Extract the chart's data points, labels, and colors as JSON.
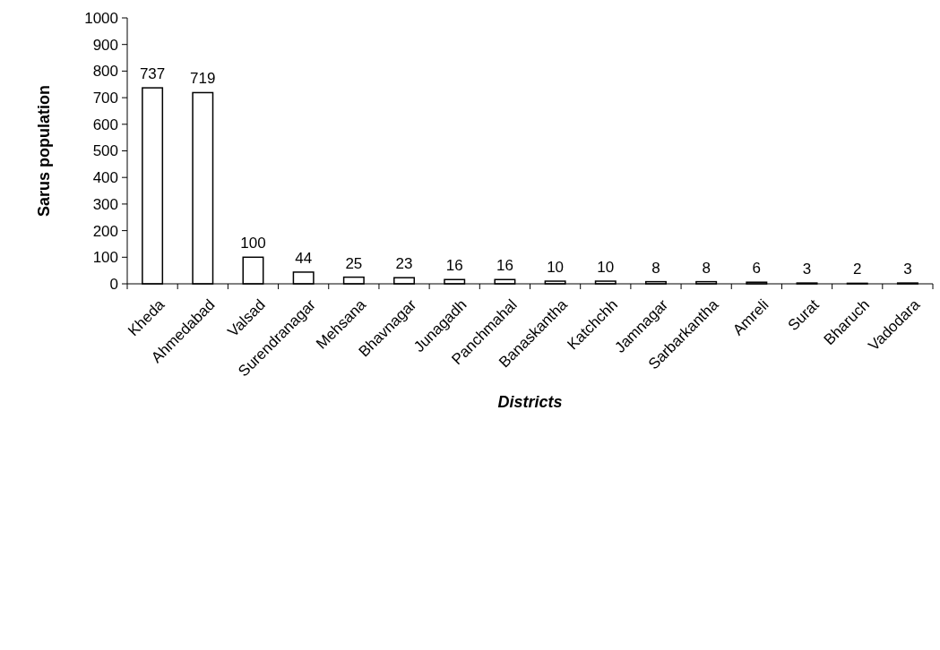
{
  "chart_data": {
    "type": "bar",
    "xlabel": "Districts",
    "ylabel": "Sarus population",
    "categories": [
      "Kheda",
      "Ahmedabad",
      "Valsad",
      "Surendranagar",
      "Mehsana",
      "Bhavnagar",
      "Junagadh",
      "Panchmahal",
      "Banaskantha",
      "Katchchh",
      "Jamnagar",
      "Sarbarkantha",
      "Amreli",
      "Surat",
      "Bharuch",
      "Vadodara"
    ],
    "values": [
      737,
      719,
      100,
      44,
      25,
      23,
      16,
      16,
      10,
      10,
      8,
      8,
      6,
      3,
      2,
      3
    ],
    "color": "#ffffff",
    "ylim": [
      0,
      1000
    ],
    "yticks": [
      0,
      100,
      200,
      300,
      400,
      500,
      600,
      700,
      800,
      900,
      1000
    ],
    "data_labels": true
  }
}
